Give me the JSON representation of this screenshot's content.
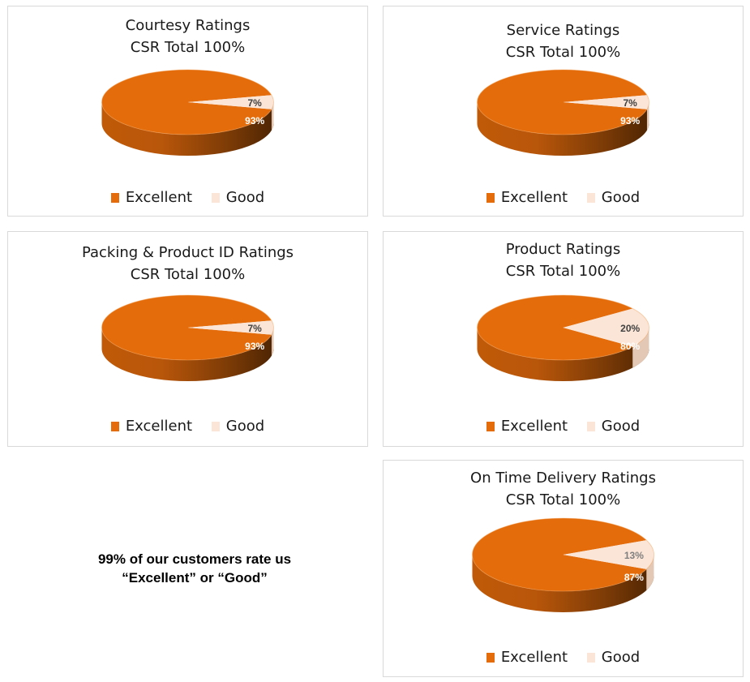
{
  "colors": {
    "excellent": "#E46C0A",
    "good": "#FBE5D6"
  },
  "legend": {
    "excellent": "Excellent",
    "good": "Good"
  },
  "summary": {
    "line1": "99% of our customers rate us",
    "line2": "“Excellent” or “Good”"
  },
  "chart_data": [
    {
      "type": "pie",
      "title": "Courtesy Ratings",
      "subtitle": "CSR Total 100%",
      "categories": [
        "Excellent",
        "Good"
      ],
      "values": [
        93,
        7
      ],
      "labels": [
        "93%",
        "7%"
      ],
      "legend_position": "bottom",
      "style": "3d"
    },
    {
      "type": "pie",
      "title": "Service Ratings",
      "subtitle": "CSR Total 100%",
      "categories": [
        "Excellent",
        "Good"
      ],
      "values": [
        93,
        7
      ],
      "labels": [
        "93%",
        "7%"
      ],
      "legend_position": "bottom",
      "style": "3d"
    },
    {
      "type": "pie",
      "title": "Packing & Product ID Ratings",
      "subtitle": "CSR Total 100%",
      "categories": [
        "Excellent",
        "Good"
      ],
      "values": [
        93,
        7
      ],
      "labels": [
        "93%",
        "7%"
      ],
      "legend_position": "bottom",
      "style": "3d"
    },
    {
      "type": "pie",
      "title": "Product Ratings",
      "subtitle": "CSR Total 100%",
      "categories": [
        "Excellent",
        "Good"
      ],
      "values": [
        80,
        20
      ],
      "labels": [
        "80%",
        "20%"
      ],
      "legend_position": "bottom",
      "style": "3d"
    },
    {
      "type": "pie",
      "title": "On Time Delivery Ratings",
      "subtitle": "CSR Total 100%",
      "categories": [
        "Excellent",
        "Good"
      ],
      "values": [
        87,
        13
      ],
      "labels": [
        "87%",
        "13%"
      ],
      "legend_position": "bottom",
      "style": "3d"
    }
  ]
}
